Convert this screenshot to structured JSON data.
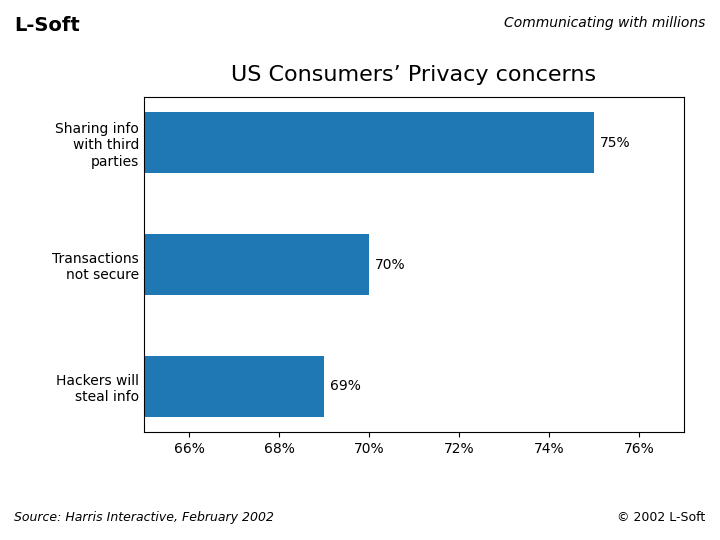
{
  "chart_data": {
    "type": "bar",
    "orientation": "horizontal",
    "title": "US Consumers’ Privacy concerns",
    "categories": [
      "Sharing info\nwith third\nparties",
      "Transactions\nnot secure",
      "Hackers will\nsteal info"
    ],
    "values": [
      75,
      70,
      69
    ],
    "value_labels": [
      "75%",
      "70%",
      "69%"
    ],
    "data_labels": true,
    "xlim": [
      65,
      77
    ],
    "xticks": [
      {
        "value": 66,
        "label": "66%"
      },
      {
        "value": 68,
        "label": "68%"
      },
      {
        "value": 70,
        "label": "70%"
      },
      {
        "value": 72,
        "label": "72%"
      },
      {
        "value": 74,
        "label": "74%"
      },
      {
        "value": 76,
        "label": "76%"
      }
    ],
    "grid": false,
    "annotations": [
      "L-Soft",
      "Communicating with millions",
      "Source: Harris Interactive, February 2002",
      "© 2002 L-Soft"
    ]
  }
}
